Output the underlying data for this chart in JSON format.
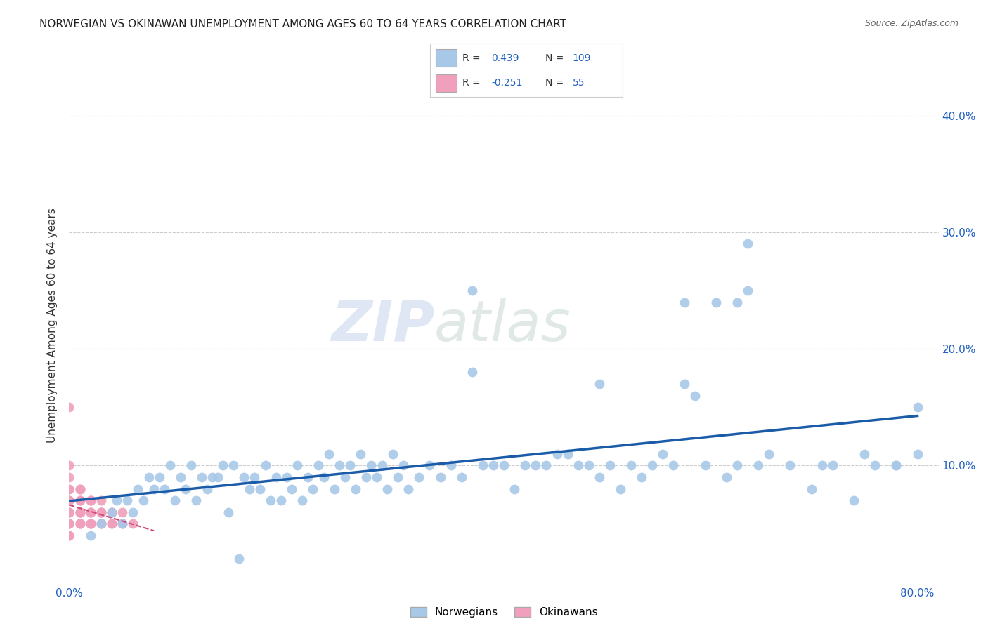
{
  "title": "NORWEGIAN VS OKINAWAN UNEMPLOYMENT AMONG AGES 60 TO 64 YEARS CORRELATION CHART",
  "source": "Source: ZipAtlas.com",
  "ylabel_label": "Unemployment Among Ages 60 to 64 years",
  "xlim": [
    0.0,
    0.82
  ],
  "ylim": [
    0.0,
    0.44
  ],
  "norwegian_R": 0.439,
  "norwegian_N": 109,
  "okinawan_R": -0.251,
  "okinawan_N": 55,
  "norwegian_color": "#a8c8e8",
  "norwegian_line_color": "#1a5ca8",
  "okinawan_color": "#f0a0bc",
  "okinawan_line_color": "#d04878",
  "legend_labels": [
    "Norwegians",
    "Okinawans"
  ],
  "watermark_zip": "ZIP",
  "watermark_atlas": "atlas",
  "norwegian_x": [
    0.02,
    0.03,
    0.04,
    0.045,
    0.05,
    0.055,
    0.06,
    0.065,
    0.07,
    0.075,
    0.08,
    0.085,
    0.09,
    0.095,
    0.1,
    0.105,
    0.11,
    0.115,
    0.12,
    0.125,
    0.13,
    0.135,
    0.14,
    0.145,
    0.15,
    0.155,
    0.16,
    0.165,
    0.17,
    0.175,
    0.18,
    0.185,
    0.19,
    0.195,
    0.2,
    0.205,
    0.21,
    0.215,
    0.22,
    0.225,
    0.23,
    0.235,
    0.24,
    0.245,
    0.25,
    0.255,
    0.26,
    0.265,
    0.27,
    0.275,
    0.28,
    0.285,
    0.29,
    0.295,
    0.3,
    0.305,
    0.31,
    0.315,
    0.32,
    0.33,
    0.34,
    0.35,
    0.36,
    0.37,
    0.38,
    0.39,
    0.4,
    0.41,
    0.42,
    0.43,
    0.44,
    0.45,
    0.46,
    0.47,
    0.48,
    0.49,
    0.5,
    0.51,
    0.52,
    0.53,
    0.54,
    0.55,
    0.56,
    0.57,
    0.58,
    0.59,
    0.6,
    0.61,
    0.62,
    0.63,
    0.64,
    0.65,
    0.66,
    0.68,
    0.7,
    0.72,
    0.74,
    0.76,
    0.78,
    0.8,
    0.5,
    0.38,
    0.58,
    0.63,
    0.64,
    0.71,
    0.75,
    0.78,
    0.8
  ],
  "norwegian_y": [
    0.04,
    0.05,
    0.06,
    0.07,
    0.05,
    0.07,
    0.06,
    0.08,
    0.07,
    0.09,
    0.08,
    0.09,
    0.08,
    0.1,
    0.07,
    0.09,
    0.08,
    0.1,
    0.07,
    0.09,
    0.08,
    0.09,
    0.09,
    0.1,
    0.06,
    0.1,
    0.02,
    0.09,
    0.08,
    0.09,
    0.08,
    0.1,
    0.07,
    0.09,
    0.07,
    0.09,
    0.08,
    0.1,
    0.07,
    0.09,
    0.08,
    0.1,
    0.09,
    0.11,
    0.08,
    0.1,
    0.09,
    0.1,
    0.08,
    0.11,
    0.09,
    0.1,
    0.09,
    0.1,
    0.08,
    0.11,
    0.09,
    0.1,
    0.08,
    0.09,
    0.1,
    0.09,
    0.1,
    0.09,
    0.25,
    0.1,
    0.1,
    0.1,
    0.08,
    0.1,
    0.1,
    0.1,
    0.11,
    0.11,
    0.1,
    0.1,
    0.09,
    0.1,
    0.08,
    0.1,
    0.09,
    0.1,
    0.11,
    0.1,
    0.24,
    0.16,
    0.1,
    0.24,
    0.09,
    0.1,
    0.29,
    0.1,
    0.11,
    0.1,
    0.08,
    0.1,
    0.07,
    0.1,
    0.1,
    0.11,
    0.17,
    0.18,
    0.17,
    0.24,
    0.25,
    0.1,
    0.11,
    0.1,
    0.15
  ],
  "okinawan_x": [
    0.0,
    0.0,
    0.0,
    0.0,
    0.0,
    0.0,
    0.0,
    0.0,
    0.0,
    0.0,
    0.0,
    0.0,
    0.0,
    0.0,
    0.0,
    0.0,
    0.0,
    0.0,
    0.01,
    0.01,
    0.01,
    0.01,
    0.01,
    0.01,
    0.01,
    0.01,
    0.01,
    0.01,
    0.02,
    0.02,
    0.02,
    0.02,
    0.02,
    0.02,
    0.02,
    0.02,
    0.03,
    0.03,
    0.03,
    0.03,
    0.03,
    0.03,
    0.04,
    0.04,
    0.04,
    0.04,
    0.05,
    0.05,
    0.05,
    0.06,
    0.0,
    0.0,
    0.0,
    0.01,
    0.02
  ],
  "okinawan_y": [
    0.04,
    0.05,
    0.06,
    0.07,
    0.08,
    0.06,
    0.05,
    0.04,
    0.07,
    0.06,
    0.08,
    0.05,
    0.06,
    0.07,
    0.04,
    0.05,
    0.06,
    0.07,
    0.06,
    0.05,
    0.07,
    0.06,
    0.08,
    0.05,
    0.06,
    0.07,
    0.05,
    0.06,
    0.05,
    0.06,
    0.07,
    0.05,
    0.06,
    0.07,
    0.06,
    0.05,
    0.05,
    0.06,
    0.07,
    0.06,
    0.05,
    0.06,
    0.05,
    0.06,
    0.05,
    0.06,
    0.05,
    0.06,
    0.05,
    0.05,
    0.15,
    0.09,
    0.1,
    0.08,
    0.07
  ],
  "grid_color": "#cccccc",
  "background_color": "#ffffff",
  "title_fontsize": 11,
  "axis_label_fontsize": 11,
  "tick_fontsize": 11,
  "source_fontsize": 9
}
